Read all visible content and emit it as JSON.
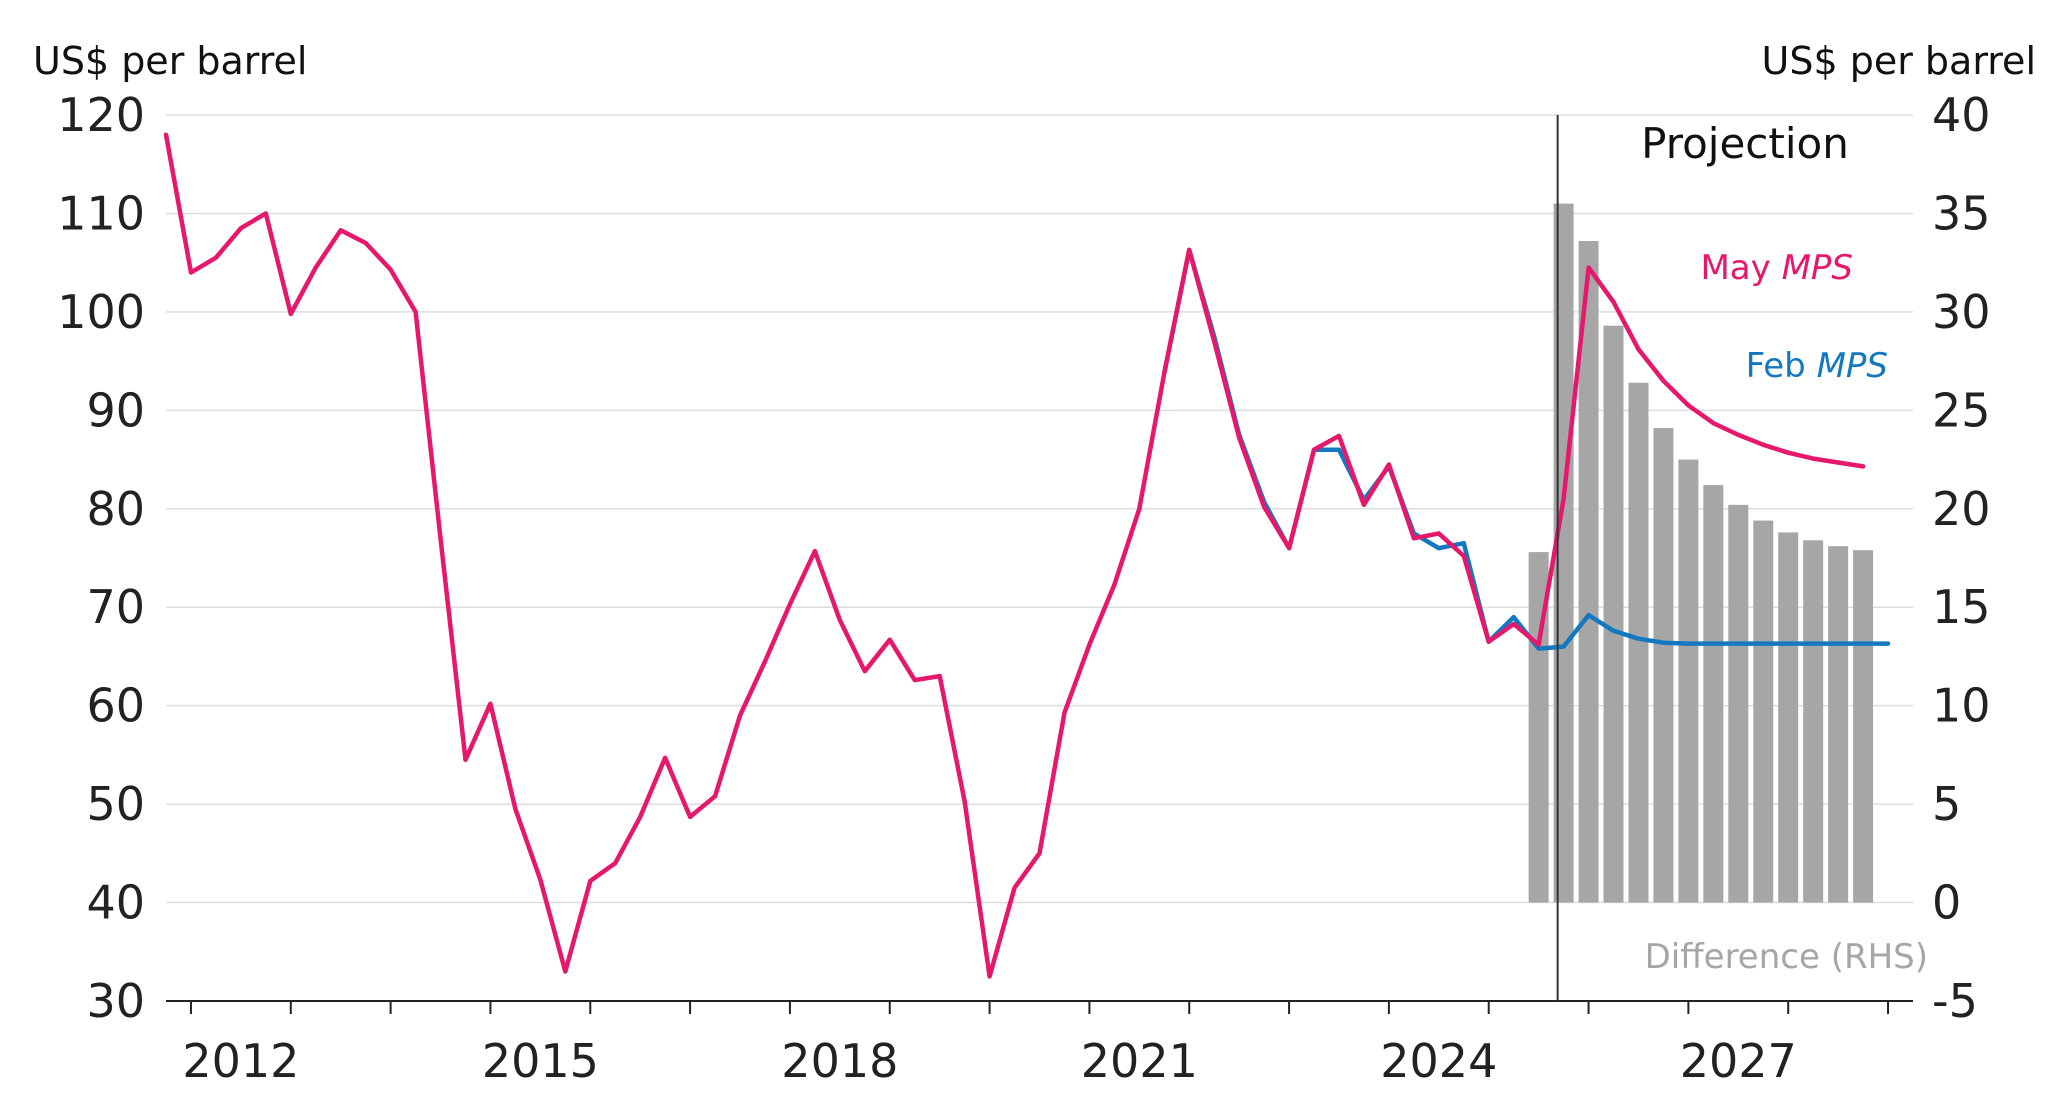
{
  "chart_data": {
    "type": "line",
    "left_axis": {
      "unit": "US$ per barrel",
      "ylim": [
        30,
        120
      ],
      "ticks": [
        "120",
        "110",
        "100",
        "90",
        "80",
        "70",
        "60",
        "50",
        "40",
        "30"
      ]
    },
    "right_axis": {
      "unit": "US$ per barrel",
      "ylim": [
        -5,
        40
      ],
      "ticks": [
        "40",
        "35",
        "30",
        "25",
        "20",
        "15",
        "10",
        "5",
        "0",
        "-5"
      ]
    },
    "x_tick_labels": [
      "2012",
      "2015",
      "2018",
      "2021",
      "2024",
      "2027"
    ],
    "x_range": [
      "2011Q4",
      "2029Q2"
    ],
    "grid": true,
    "projection_label": "Projection",
    "projection_start": "2025Q3",
    "series": [
      {
        "name": "May MPS",
        "label_parts": [
          "May ",
          "MPS"
        ],
        "axis": "left",
        "color": "#E5186C",
        "x": [
          "2011Q4",
          "2012Q1",
          "2012Q2",
          "2012Q3",
          "2012Q4",
          "2013Q1",
          "2013Q2",
          "2013Q3",
          "2013Q4",
          "2014Q1",
          "2014Q2",
          "2014Q3",
          "2014Q4",
          "2015Q1",
          "2015Q2",
          "2015Q3",
          "2015Q4",
          "2016Q1",
          "2016Q2",
          "2016Q3",
          "2016Q4",
          "2017Q1",
          "2017Q2",
          "2017Q3",
          "2017Q4",
          "2018Q1",
          "2018Q2",
          "2018Q3",
          "2018Q4",
          "2019Q1",
          "2019Q2",
          "2019Q3",
          "2019Q4",
          "2020Q1",
          "2020Q2",
          "2020Q3",
          "2020Q4",
          "2021Q1",
          "2021Q2",
          "2021Q3",
          "2021Q4",
          "2022Q1",
          "2022Q2",
          "2022Q3",
          "2022Q4",
          "2023Q1",
          "2023Q2",
          "2023Q3",
          "2023Q4",
          "2024Q1",
          "2024Q2",
          "2024Q3",
          "2024Q4",
          "2025Q1",
          "2025Q2",
          "2025Q3",
          "2025Q4",
          "2026Q1",
          "2026Q2",
          "2026Q3",
          "2026Q4",
          "2027Q1",
          "2027Q2",
          "2027Q3",
          "2027Q4",
          "2028Q1",
          "2028Q2",
          "2028Q3",
          "2028Q4"
        ],
        "values": [
          118,
          104,
          105.5,
          108.5,
          110,
          99.8,
          104.5,
          108.3,
          107,
          104.3,
          100,
          77,
          54.5,
          60.2,
          49.5,
          42.3,
          33,
          42.2,
          44,
          48.7,
          54.7,
          48.7,
          50.8,
          59,
          64.5,
          70.3,
          75.7,
          68.7,
          63.5,
          66.7,
          62.6,
          63,
          50.3,
          32.5,
          41.5,
          45,
          59.3,
          66.2,
          72.3,
          80,
          93.8,
          106.3,
          97,
          87.2,
          80.2,
          76,
          86,
          87.4,
          80.4,
          84.5,
          77,
          77.5,
          75.2,
          66.5,
          68.3,
          66.2,
          81,
          104.5,
          101,
          96.2,
          93,
          90.5,
          88.7,
          87.5,
          86.5,
          85.7,
          85.1,
          84.7,
          84.3
        ]
      },
      {
        "name": "Feb MPS",
        "label_parts": [
          "Feb ",
          "MPS"
        ],
        "axis": "left",
        "color": "#1478C0",
        "x": [
          "2021Q4",
          "2022Q1",
          "2022Q2",
          "2022Q3",
          "2022Q4",
          "2023Q1",
          "2023Q2",
          "2023Q3",
          "2023Q4",
          "2024Q1",
          "2024Q2",
          "2024Q3",
          "2024Q4",
          "2025Q1",
          "2025Q2",
          "2025Q3",
          "2025Q4",
          "2026Q1",
          "2026Q2",
          "2026Q3",
          "2026Q4",
          "2027Q1",
          "2027Q2",
          "2027Q3",
          "2027Q4",
          "2028Q1",
          "2028Q2",
          "2028Q3",
          "2028Q4",
          "2029Q1"
        ],
        "values": [
          93.8,
          106.3,
          97.5,
          87.5,
          80.7,
          76,
          86,
          86,
          80.9,
          84.3,
          77.5,
          76,
          76.5,
          66.5,
          69,
          65.8,
          66,
          69.2,
          67.6,
          66.8,
          66.4,
          66.3,
          66.3,
          66.3,
          66.3,
          66.3,
          66.3,
          66.3,
          66.3,
          66.3
        ]
      },
      {
        "name": "Difference (RHS)",
        "type": "bar",
        "axis": "right",
        "color": "#A6A6A6",
        "x": [
          "2025Q3",
          "2025Q4",
          "2026Q1",
          "2026Q2",
          "2026Q3",
          "2026Q4",
          "2027Q1",
          "2027Q2",
          "2027Q3",
          "2027Q4",
          "2028Q1",
          "2028Q2",
          "2028Q3",
          "2028Q4"
        ],
        "values": [
          17.8,
          35.5,
          33.6,
          29.3,
          26.4,
          24.1,
          22.5,
          21.2,
          20.2,
          19.4,
          18.8,
          18.4,
          18.1,
          17.9
        ]
      }
    ]
  }
}
